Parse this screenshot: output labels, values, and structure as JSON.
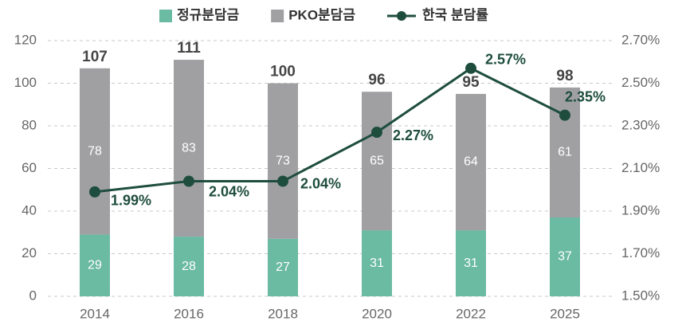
{
  "chart_data": {
    "type": "bar_line",
    "categories": [
      "2014",
      "2016",
      "2018",
      "2020",
      "2022",
      "2025"
    ],
    "series": [
      {
        "name": "정규분담금",
        "color": "#6bbaa2",
        "values": [
          29,
          28,
          27,
          31,
          31,
          37
        ]
      },
      {
        "name": "PKO분담금",
        "color": "#a0a0a3",
        "values": [
          78,
          83,
          73,
          65,
          64,
          61
        ]
      },
      {
        "name": "한국 분담률",
        "color": "#1e4d3e",
        "axis": "y2",
        "values": [
          1.99,
          2.04,
          2.04,
          2.27,
          2.57,
          2.35
        ],
        "value_labels": [
          "1.99%",
          "2.04%",
          "2.04%",
          "2.27%",
          "2.57%",
          "2.35%"
        ]
      }
    ],
    "totals": [
      107,
      111,
      100,
      96,
      95,
      98
    ],
    "ylim": [
      0,
      120
    ],
    "yticks": [
      0,
      20,
      40,
      60,
      80,
      100,
      120
    ],
    "y2lim": [
      1.5,
      2.7
    ],
    "y2ticks": [
      {
        "value": 1.5,
        "label": "1.50%"
      },
      {
        "value": 1.7,
        "label": "1.70%"
      },
      {
        "value": 1.9,
        "label": "1.90%"
      },
      {
        "value": 2.1,
        "label": "2.10%"
      },
      {
        "value": 2.3,
        "label": "2.30%"
      },
      {
        "value": 2.5,
        "label": "2.50%"
      },
      {
        "value": 2.7,
        "label": "2.70%"
      }
    ],
    "grid": true,
    "legend": "top"
  }
}
